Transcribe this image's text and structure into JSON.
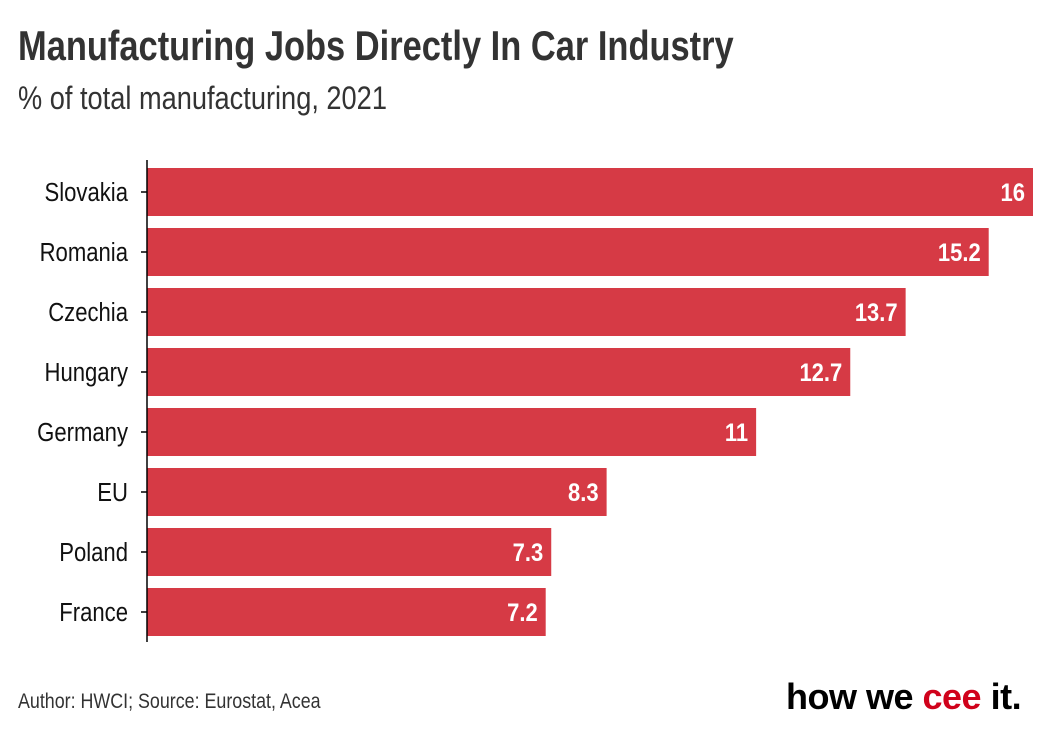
{
  "title": "Manufacturing Jobs Directly In Car Industry",
  "subtitle": "% of total manufacturing, 2021",
  "footer": "Author: HWCI; Source: Eurostat, Acea",
  "logo": {
    "part1": "how we ",
    "part2": "cee",
    "part3": " it."
  },
  "colors": {
    "bar": "#d63a45",
    "label": "#ffffff",
    "logo_accent": "#d0021b"
  },
  "chart_data": {
    "type": "bar",
    "orientation": "horizontal",
    "title": "Manufacturing Jobs Directly In Car Industry",
    "subtitle": "% of total manufacturing, 2021",
    "xlabel": "",
    "ylabel": "",
    "categories": [
      "Slovakia",
      "Romania",
      "Czechia",
      "Hungary",
      "Germany",
      "EU",
      "Poland",
      "France"
    ],
    "values": [
      16,
      15.2,
      13.7,
      12.7,
      11,
      8.3,
      7.3,
      7.2
    ],
    "value_labels": [
      "16",
      "15.2",
      "13.7",
      "12.7",
      "11",
      "8.3",
      "7.3",
      "7.2"
    ],
    "xlim": [
      0,
      16
    ],
    "grid": false
  }
}
